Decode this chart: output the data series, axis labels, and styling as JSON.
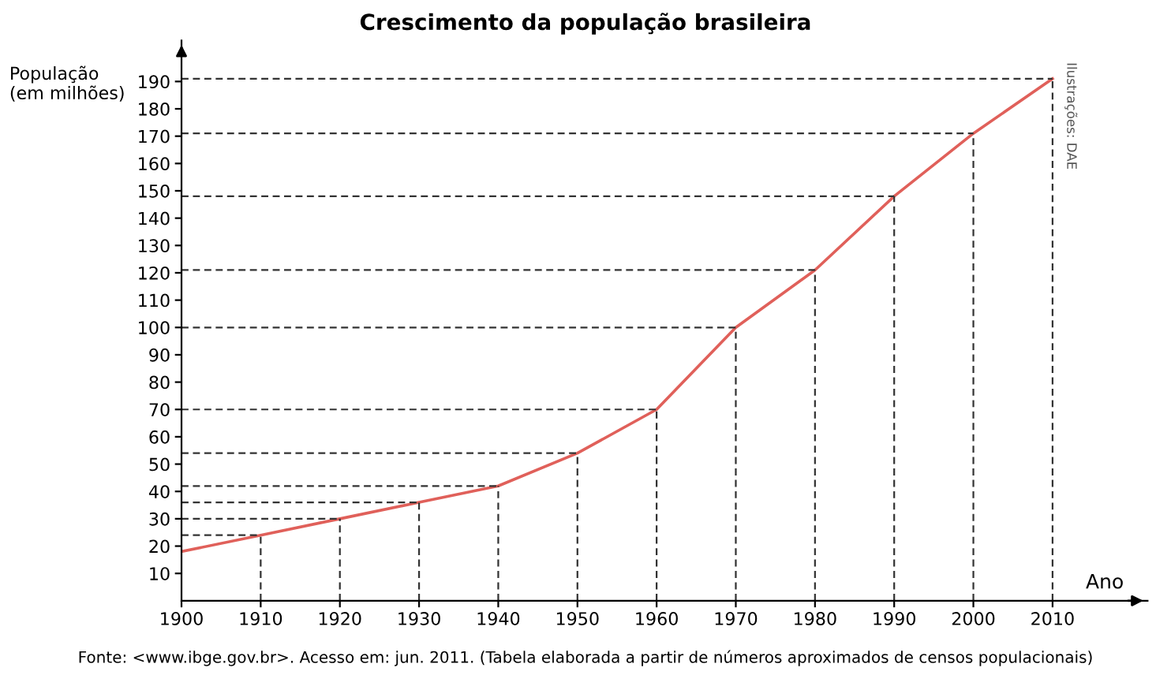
{
  "chart_data": {
    "type": "line",
    "title": "Crescimento da população brasileira",
    "xlabel": "Ano",
    "ylabel": "População\n(em milhões)",
    "x": [
      1900,
      1910,
      1920,
      1930,
      1940,
      1950,
      1960,
      1970,
      1980,
      1990,
      2000,
      2010
    ],
    "series": [
      {
        "color": "#e0605a",
        "values": [
          18,
          24,
          30,
          36,
          42,
          54,
          70,
          100,
          121,
          148,
          171,
          191
        ]
      }
    ],
    "xlim": [
      1900,
      2022
    ],
    "ylim": [
      0,
      205
    ],
    "xticks": [
      1900,
      1910,
      1920,
      1930,
      1940,
      1950,
      1960,
      1970,
      1980,
      1990,
      2000,
      2010
    ],
    "yticks": [
      10,
      20,
      30,
      40,
      50,
      60,
      70,
      80,
      90,
      100,
      110,
      120,
      130,
      140,
      150,
      160,
      170,
      180,
      190
    ],
    "ref_lines": [
      {
        "axis": "x",
        "value": 1910,
        "line_style": "dashed",
        "color": "#333333"
      },
      {
        "axis": "x",
        "value": 1920,
        "line_style": "dashed",
        "color": "#333333"
      },
      {
        "axis": "x",
        "value": 1930,
        "line_style": "dashed",
        "color": "#333333"
      },
      {
        "axis": "x",
        "value": 1940,
        "line_style": "dashed",
        "color": "#333333"
      },
      {
        "axis": "x",
        "value": 1950,
        "line_style": "dashed",
        "color": "#333333"
      },
      {
        "axis": "x",
        "value": 1960,
        "line_style": "dashed",
        "color": "#333333"
      },
      {
        "axis": "x",
        "value": 1970,
        "line_style": "dashed",
        "color": "#333333"
      },
      {
        "axis": "x",
        "value": 1980,
        "line_style": "dashed",
        "color": "#333333"
      },
      {
        "axis": "x",
        "value": 1990,
        "line_style": "dashed",
        "color": "#333333"
      },
      {
        "axis": "x",
        "value": 2000,
        "line_style": "dashed",
        "color": "#333333"
      },
      {
        "axis": "x",
        "value": 2010,
        "line_style": "dashed",
        "color": "#333333"
      },
      {
        "axis": "y",
        "value": 24,
        "line_style": "dashed",
        "color": "#333333"
      },
      {
        "axis": "y",
        "value": 30,
        "line_style": "dashed",
        "color": "#333333"
      },
      {
        "axis": "y",
        "value": 36,
        "line_style": "dashed",
        "color": "#333333"
      },
      {
        "axis": "y",
        "value": 42,
        "line_style": "dashed",
        "color": "#333333"
      },
      {
        "axis": "y",
        "value": 54,
        "line_style": "dashed",
        "color": "#333333"
      },
      {
        "axis": "y",
        "value": 70,
        "line_style": "dashed",
        "color": "#333333"
      },
      {
        "axis": "y",
        "value": 100,
        "line_style": "dashed",
        "color": "#333333"
      },
      {
        "axis": "y",
        "value": 121,
        "line_style": "dashed",
        "color": "#333333"
      },
      {
        "axis": "y",
        "value": 148,
        "line_style": "dashed",
        "color": "#333333"
      },
      {
        "axis": "y",
        "value": 171,
        "line_style": "dashed",
        "color": "#333333"
      },
      {
        "axis": "y",
        "value": 191,
        "line_style": "dashed",
        "color": "#333333"
      }
    ],
    "grid": false,
    "legend": false,
    "marker": "none",
    "line_style": "solid",
    "annotations": [
      "Fonte: <www.ibge.gov.br>. Acesso em: jun. 2011. (Tabela elaborada a partir de números aproximados de censos populacionais)",
      "Ilustrações: DAE"
    ]
  }
}
